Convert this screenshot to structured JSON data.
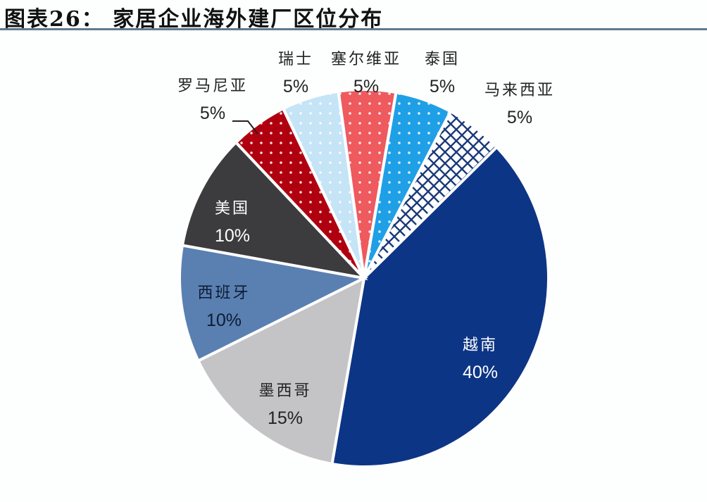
{
  "title": "图表26： 家居企业海外建厂区位分布",
  "chart_data": {
    "type": "pie",
    "title": "家居企业海外建厂区位分布",
    "start_angle_deg": 46,
    "direction": "clockwise",
    "slices": [
      {
        "name": "越南",
        "label": "40%",
        "value": 40,
        "color": "#0d3585",
        "pattern": "solid"
      },
      {
        "name": "墨西哥",
        "label": "15%",
        "value": 15,
        "color": "#c4c4c6",
        "pattern": "solid"
      },
      {
        "name": "西班牙",
        "label": "10%",
        "value": 10,
        "color": "#5a80b2",
        "pattern": "solid"
      },
      {
        "name": "美国",
        "label": "10%",
        "value": 10,
        "color": "#3c3c3e",
        "pattern": "solid"
      },
      {
        "name": "罗马尼亚",
        "label": "5%",
        "value": 5,
        "color": "#b00010",
        "pattern": "dots"
      },
      {
        "name": "瑞士",
        "label": "5%",
        "value": 5,
        "color": "#c5e4f6",
        "pattern": "dots"
      },
      {
        "name": "塞尔维亚",
        "label": "5%",
        "value": 5,
        "color": "#ee5a5e",
        "pattern": "dots"
      },
      {
        "name": "泰国",
        "label": "5%",
        "value": 5,
        "color": "#1fa0e6",
        "pattern": "dots"
      },
      {
        "name": "马来西亚",
        "label": "5%",
        "value": 5,
        "color": "#1a3a7a",
        "pattern": "crosshatch"
      }
    ]
  }
}
